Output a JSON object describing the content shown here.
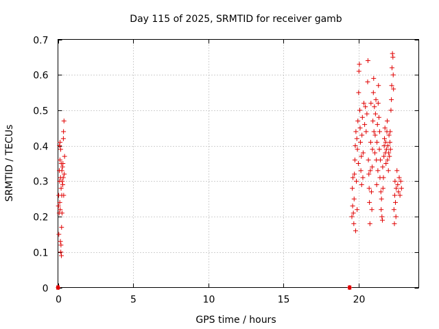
{
  "chart_data": {
    "type": "scatter",
    "title": "Day 115 of 2025, SRMTID for receiver gamb",
    "xlabel": "GPS time / hours",
    "ylabel": "SRMTID / TECUs",
    "xlim": [
      0,
      24
    ],
    "ylim": [
      0,
      0.7
    ],
    "xticks": [
      0,
      5,
      10,
      15,
      20
    ],
    "yticks": [
      0,
      0.1,
      0.2,
      0.3,
      0.4,
      0.5,
      0.6,
      0.7
    ],
    "grid": true,
    "marker": "plus",
    "color": "#e00000",
    "zero_markers_x": [
      0,
      19.4
    ],
    "series": [
      {
        "name": "SRMTID",
        "points": [
          [
            0.02,
            0.0
          ],
          [
            0.03,
            0.23
          ],
          [
            0.05,
            0.26
          ],
          [
            0.06,
            0.15
          ],
          [
            0.08,
            0.21
          ],
          [
            0.09,
            0.33
          ],
          [
            0.1,
            0.4
          ],
          [
            0.11,
            0.3
          ],
          [
            0.12,
            0.24
          ],
          [
            0.13,
            0.36
          ],
          [
            0.14,
            0.41
          ],
          [
            0.15,
            0.22
          ],
          [
            0.16,
            0.13
          ],
          [
            0.17,
            0.31
          ],
          [
            0.18,
            0.39
          ],
          [
            0.19,
            0.1
          ],
          [
            0.2,
            0.12
          ],
          [
            0.21,
            0.28
          ],
          [
            0.22,
            0.35
          ],
          [
            0.23,
            0.09
          ],
          [
            0.24,
            0.17
          ],
          [
            0.25,
            0.26
          ],
          [
            0.26,
            0.33
          ],
          [
            0.27,
            0.21
          ],
          [
            0.28,
            0.3
          ],
          [
            0.3,
            0.34
          ],
          [
            0.32,
            0.29
          ],
          [
            0.33,
            0.35
          ],
          [
            0.35,
            0.31
          ],
          [
            0.36,
            0.42
          ],
          [
            0.37,
            0.44
          ],
          [
            0.38,
            0.26
          ],
          [
            0.4,
            0.47
          ],
          [
            0.42,
            0.32
          ],
          [
            0.44,
            0.37
          ],
          [
            19.4,
            0.0
          ],
          [
            19.55,
            0.2
          ],
          [
            19.58,
            0.28
          ],
          [
            19.6,
            0.23
          ],
          [
            19.62,
            0.31
          ],
          [
            19.65,
            0.21
          ],
          [
            19.68,
            0.18
          ],
          [
            19.7,
            0.25
          ],
          [
            19.72,
            0.32
          ],
          [
            19.75,
            0.36
          ],
          [
            19.78,
            0.4
          ],
          [
            19.8,
            0.16
          ],
          [
            19.82,
            0.44
          ],
          [
            19.85,
            0.3
          ],
          [
            19.88,
            0.42
          ],
          [
            19.9,
            0.22
          ],
          [
            19.92,
            0.39
          ],
          [
            19.95,
            0.47
          ],
          [
            19.98,
            0.35
          ],
          [
            20.0,
            0.55
          ],
          [
            20.02,
            0.61
          ],
          [
            20.05,
            0.63
          ],
          [
            20.08,
            0.5
          ],
          [
            20.1,
            0.45
          ],
          [
            20.12,
            0.41
          ],
          [
            20.15,
            0.33
          ],
          [
            20.18,
            0.37
          ],
          [
            20.2,
            0.29
          ],
          [
            20.22,
            0.43
          ],
          [
            20.25,
            0.48
          ],
          [
            20.28,
            0.31
          ],
          [
            20.3,
            0.38
          ],
          [
            20.35,
            0.52
          ],
          [
            20.4,
            0.46
          ],
          [
            20.45,
            0.51
          ],
          [
            20.5,
            0.44
          ],
          [
            20.55,
            0.49
          ],
          [
            20.6,
            0.58
          ],
          [
            20.62,
            0.64
          ],
          [
            20.65,
            0.36
          ],
          [
            20.68,
            0.32
          ],
          [
            20.7,
            0.28
          ],
          [
            20.72,
            0.24
          ],
          [
            20.75,
            0.18
          ],
          [
            20.78,
            0.33
          ],
          [
            20.8,
            0.41
          ],
          [
            20.82,
            0.52
          ],
          [
            20.85,
            0.27
          ],
          [
            20.88,
            0.22
          ],
          [
            20.9,
            0.34
          ],
          [
            20.92,
            0.39
          ],
          [
            20.95,
            0.47
          ],
          [
            20.98,
            0.55
          ],
          [
            21.0,
            0.59
          ],
          [
            21.02,
            0.44
          ],
          [
            21.05,
            0.51
          ],
          [
            21.08,
            0.38
          ],
          [
            21.1,
            0.43
          ],
          [
            21.12,
            0.49
          ],
          [
            21.15,
            0.53
          ],
          [
            21.18,
            0.36
          ],
          [
            21.2,
            0.29
          ],
          [
            21.22,
            0.41
          ],
          [
            21.25,
            0.46
          ],
          [
            21.28,
            0.33
          ],
          [
            21.3,
            0.52
          ],
          [
            21.32,
            0.57
          ],
          [
            21.35,
            0.48
          ],
          [
            21.38,
            0.39
          ],
          [
            21.4,
            0.44
          ],
          [
            21.42,
            0.31
          ],
          [
            21.45,
            0.36
          ],
          [
            21.48,
            0.27
          ],
          [
            21.5,
            0.22
          ],
          [
            21.52,
            0.25
          ],
          [
            21.55,
            0.2
          ],
          [
            21.58,
            0.19
          ],
          [
            21.6,
            0.34
          ],
          [
            21.62,
            0.28
          ],
          [
            21.65,
            0.31
          ],
          [
            21.68,
            0.37
          ],
          [
            21.7,
            0.4
          ],
          [
            21.72,
            0.42
          ],
          [
            21.75,
            0.45
          ],
          [
            21.78,
            0.38
          ],
          [
            21.8,
            0.41
          ],
          [
            21.82,
            0.35
          ],
          [
            21.85,
            0.39
          ],
          [
            21.88,
            0.44
          ],
          [
            21.9,
            0.47
          ],
          [
            21.92,
            0.36
          ],
          [
            21.95,
            0.4
          ],
          [
            21.98,
            0.33
          ],
          [
            22.0,
            0.38
          ],
          [
            22.02,
            0.43
          ],
          [
            22.05,
            0.37
          ],
          [
            22.08,
            0.41
          ],
          [
            22.1,
            0.44
          ],
          [
            22.12,
            0.39
          ],
          [
            22.15,
            0.5
          ],
          [
            22.18,
            0.53
          ],
          [
            22.2,
            0.57
          ],
          [
            22.22,
            0.62
          ],
          [
            22.25,
            0.66
          ],
          [
            22.28,
            0.65
          ],
          [
            22.3,
            0.6
          ],
          [
            22.32,
            0.56
          ],
          [
            22.35,
            0.22
          ],
          [
            22.38,
            0.18
          ],
          [
            22.4,
            0.26
          ],
          [
            22.42,
            0.3
          ],
          [
            22.45,
            0.24
          ],
          [
            22.48,
            0.2
          ],
          [
            22.5,
            0.28
          ],
          [
            22.55,
            0.33
          ],
          [
            22.6,
            0.29
          ],
          [
            22.65,
            0.27
          ],
          [
            22.7,
            0.31
          ],
          [
            22.75,
            0.26
          ],
          [
            22.8,
            0.3
          ],
          [
            22.85,
            0.28
          ]
        ]
      }
    ]
  }
}
